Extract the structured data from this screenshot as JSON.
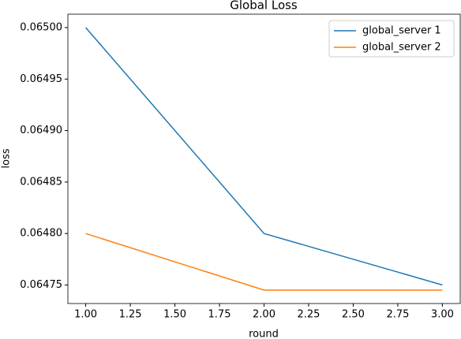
{
  "chart_data": {
    "type": "line",
    "title": "Global Loss",
    "x_label": "round",
    "y_label": "loss",
    "x": [
      1,
      2,
      3
    ],
    "series": [
      {
        "name": "global_server 1",
        "color": "#1f77b4",
        "values": [
          0.065,
          0.0648,
          0.06475
        ]
      },
      {
        "name": "global_server 2",
        "color": "#ff7f0e",
        "values": [
          0.0648,
          0.064745,
          0.064745
        ]
      }
    ],
    "xlim": [
      0.9,
      3.1
    ],
    "xticks": [
      {
        "value": 1,
        "label": "1.00"
      },
      {
        "value": 1.25,
        "label": "1.25"
      },
      {
        "value": 1.5,
        "label": "1.50"
      },
      {
        "value": 1.75,
        "label": "1.75"
      },
      {
        "value": 2,
        "label": "2.00"
      },
      {
        "value": 2.25,
        "label": "2.25"
      },
      {
        "value": 2.5,
        "label": "2.50"
      },
      {
        "value": 2.75,
        "label": "2.75"
      },
      {
        "value": 3,
        "label": "3.00"
      }
    ],
    "ylim": [
      0.064732,
      0.065013
    ],
    "yticks": [
      {
        "value": 0.06475,
        "label": "0.06475"
      },
      {
        "value": 0.0648,
        "label": "0.06480"
      },
      {
        "value": 0.06485,
        "label": "0.06485"
      },
      {
        "value": 0.0649,
        "label": "0.06490"
      },
      {
        "value": 0.06495,
        "label": "0.06495"
      },
      {
        "value": 0.065,
        "label": "0.06500"
      }
    ],
    "legend": "upper right"
  }
}
